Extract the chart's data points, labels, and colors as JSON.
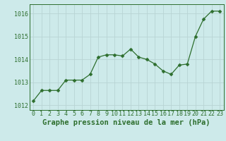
{
  "x": [
    0,
    1,
    2,
    3,
    4,
    5,
    6,
    7,
    8,
    9,
    10,
    11,
    12,
    13,
    14,
    15,
    16,
    17,
    18,
    19,
    20,
    21,
    22,
    23
  ],
  "y": [
    1012.2,
    1012.65,
    1012.65,
    1012.65,
    1013.1,
    1013.1,
    1013.1,
    1013.35,
    1014.1,
    1014.2,
    1014.2,
    1014.15,
    1014.45,
    1014.1,
    1014.0,
    1013.8,
    1013.5,
    1013.35,
    1013.75,
    1013.8,
    1015.0,
    1015.75,
    1016.1,
    1016.1
  ],
  "line_color": "#2d6e2d",
  "marker": "D",
  "marker_size": 2.5,
  "bg_color": "#cdeaea",
  "grid_color": "#b8d4d4",
  "title": "Graphe pression niveau de la mer (hPa)",
  "title_color": "#2d6e2d",
  "title_fontsize": 7.5,
  "tick_color": "#2d6e2d",
  "tick_fontsize": 6.0,
  "ylim": [
    1011.8,
    1016.4
  ],
  "xlim": [
    -0.5,
    23.5
  ],
  "yticks": [
    1012,
    1013,
    1014,
    1015,
    1016
  ],
  "xticks": [
    0,
    1,
    2,
    3,
    4,
    5,
    6,
    7,
    8,
    9,
    10,
    11,
    12,
    13,
    14,
    15,
    16,
    17,
    18,
    19,
    20,
    21,
    22,
    23
  ]
}
